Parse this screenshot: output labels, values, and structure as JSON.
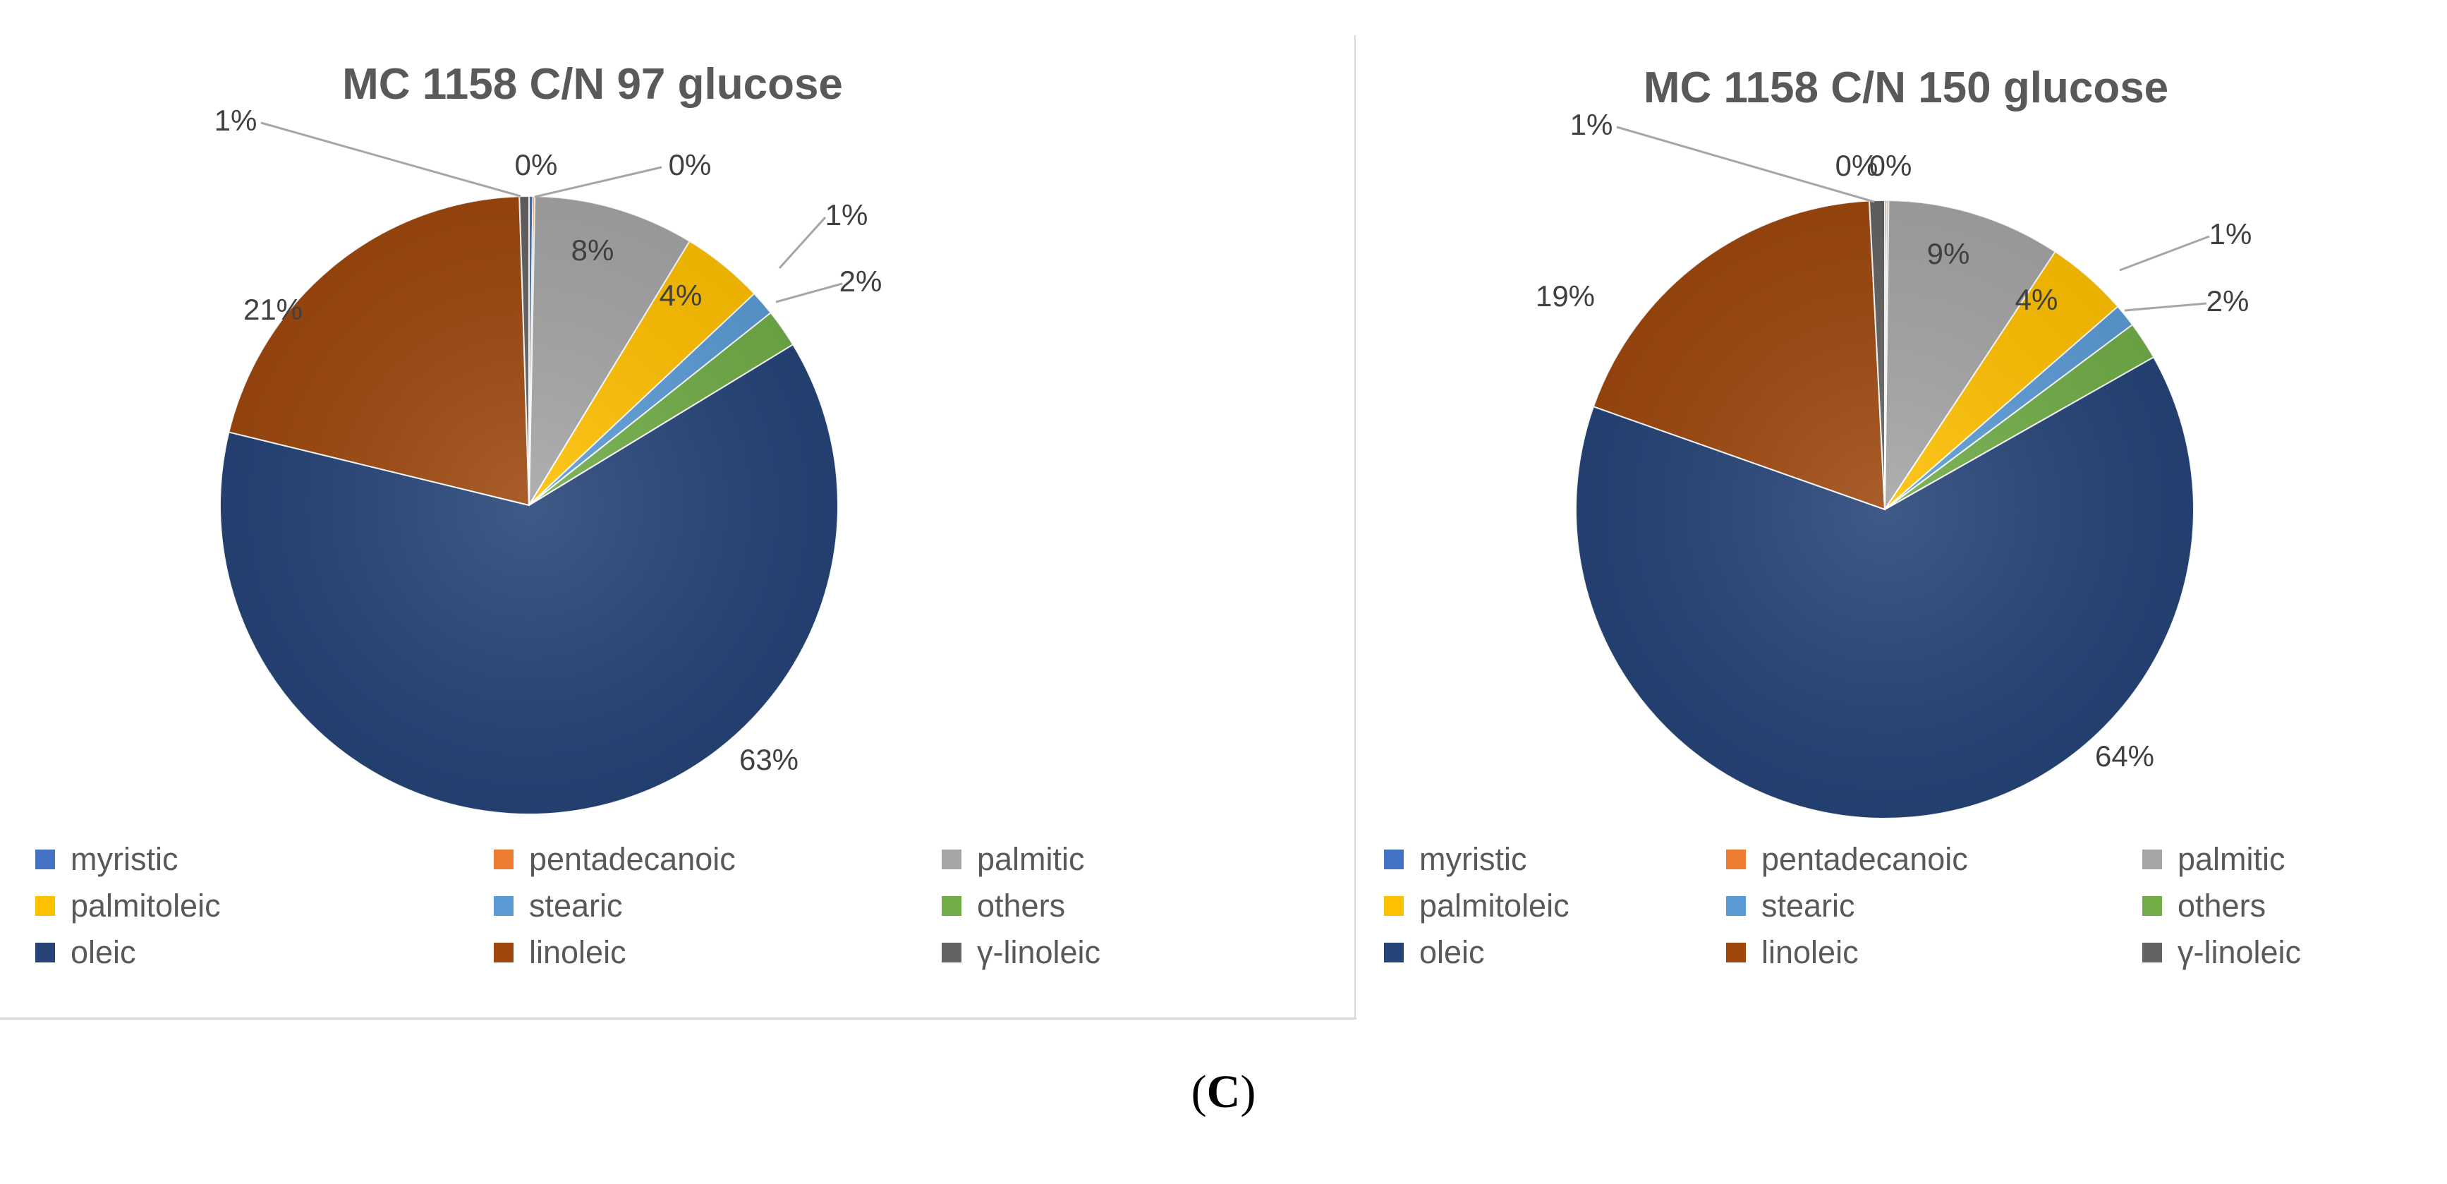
{
  "chart_data": [
    {
      "type": "pie",
      "title": "MC 1158 C/N 97 glucose",
      "categories": [
        "myristic",
        "pentadecanoic",
        "palmitic",
        "palmitoleic",
        "stearic",
        "others",
        "oleic",
        "linoleic",
        "γ-linoleic"
      ],
      "values": [
        0.2,
        0.1,
        8.4,
        4.3,
        1.3,
        2.0,
        62.5,
        20.7,
        0.5
      ],
      "data_labels": [
        "0%",
        "0%",
        "8%",
        "4%",
        "1%",
        "2%",
        "63%",
        "21%",
        "1%"
      ],
      "legend_position": "bottom"
    },
    {
      "type": "pie",
      "title": "MC 1158 C/N 150 glucose",
      "categories": [
        "myristic",
        "pentadecanoic",
        "palmitic",
        "palmitoleic",
        "stearic",
        "others",
        "oleic",
        "linoleic",
        "γ-linoleic"
      ],
      "values": [
        0.1,
        0.1,
        9.1,
        4.3,
        1.2,
        2.0,
        63.6,
        18.8,
        0.8
      ],
      "data_labels": [
        "0%",
        "0%",
        "9%",
        "4%",
        "1%",
        "2%",
        "64%",
        "19%",
        "1%"
      ],
      "legend_position": "bottom"
    }
  ],
  "colors": [
    "#4472C4",
    "#ED7D31",
    "#A5A5A5",
    "#FFC000",
    "#5B9BD5",
    "#70AD47",
    "#264478",
    "#9E480E",
    "#636363"
  ],
  "caption": {
    "open": "(",
    "letter": "C",
    "close": ")"
  }
}
